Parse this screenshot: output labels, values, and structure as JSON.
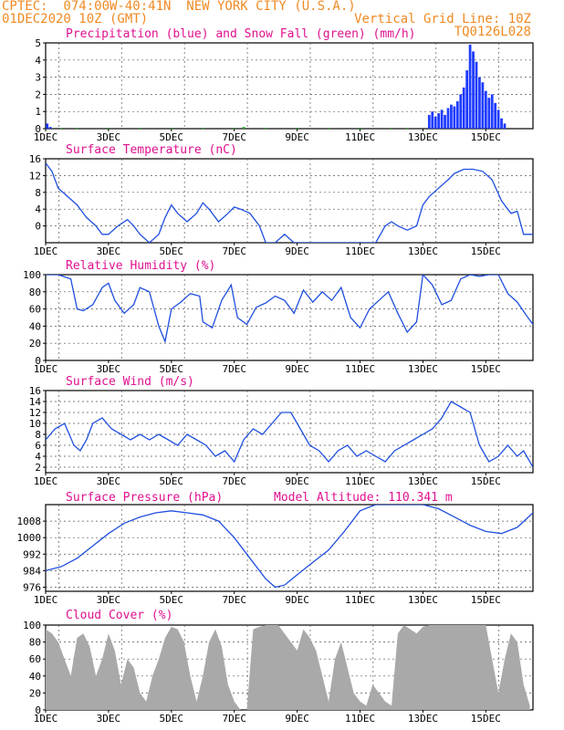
{
  "header": {
    "line1_left": "CPTEC:  074:00W-40:41N  NEW YORK CITY (U.S.A.)",
    "line2_left": "01DEC2020 10Z (GMT)",
    "line2_right": "Vertical Grid Line: 10Z",
    "line3_right": "TQ0126L028"
  },
  "colors": {
    "header": "#f08a24",
    "title": "#e0118f",
    "series": "#1f4fe0",
    "precip": "#1f3bff",
    "snow": "#22aa22",
    "cloud": "#a9a9a9"
  },
  "x_ticks": [
    "1DEC",
    "3DEC",
    "5DEC",
    "7DEC",
    "9DEC",
    "11DEC",
    "13DEC",
    "15DEC"
  ],
  "chart_data": [
    {
      "id": "precip",
      "type": "bar",
      "title": "Precipitation (blue) and Snow Fall (green) (mm/h)",
      "xlim": [
        0,
        15.5
      ],
      "ylim": [
        0,
        5
      ],
      "yticks": [
        0,
        1,
        2,
        3,
        4,
        5
      ],
      "series": [
        {
          "name": "Precipitation",
          "x": [
            0.05,
            0.15,
            12.2,
            12.3,
            12.4,
            12.5,
            12.6,
            12.7,
            12.8,
            12.9,
            13.0,
            13.1,
            13.2,
            13.3,
            13.4,
            13.5,
            13.6,
            13.7,
            13.8,
            13.9,
            14.0,
            14.1,
            14.2,
            14.3,
            14.4,
            14.5,
            14.6
          ],
          "values": [
            0.3,
            0.1,
            0.8,
            1.0,
            0.7,
            0.9,
            1.1,
            0.8,
            1.2,
            1.4,
            1.3,
            1.6,
            2.0,
            2.4,
            3.4,
            4.9,
            4.5,
            3.9,
            3.0,
            2.7,
            2.2,
            1.8,
            2.0,
            1.5,
            1.1,
            0.6,
            0.3
          ]
        },
        {
          "name": "Snow Fall",
          "x": [
            0.5,
            1.0,
            2.0,
            3.0,
            4.0,
            5.0,
            6.0,
            6.3,
            7.0,
            8.0,
            9.0,
            10.0,
            11.0,
            11.5
          ],
          "values": [
            0.05,
            0.05,
            0.05,
            0.05,
            0.05,
            0.05,
            0.05,
            0.1,
            0.05,
            0.05,
            0.05,
            0.05,
            0.05,
            0.05
          ]
        }
      ]
    },
    {
      "id": "temp",
      "type": "line",
      "title": "Surface Temperature (nC)",
      "xlim": [
        0,
        15.5
      ],
      "ylim": [
        -4,
        16
      ],
      "yticks": [
        0,
        4,
        8,
        12,
        16
      ],
      "x": [
        0,
        0.2,
        0.4,
        0.7,
        1.0,
        1.3,
        1.6,
        1.8,
        2.0,
        2.3,
        2.6,
        2.8,
        3.0,
        3.3,
        3.6,
        3.8,
        4.0,
        4.2,
        4.5,
        4.8,
        5.0,
        5.2,
        5.5,
        5.8,
        6.0,
        6.2,
        6.5,
        6.8,
        7.0,
        7.3,
        7.6,
        7.9,
        8.2,
        8.5,
        9.0,
        9.5,
        10.0,
        10.5,
        10.8,
        11.0,
        11.2,
        11.5,
        11.8,
        12.0,
        12.2,
        12.5,
        12.8,
        13.0,
        13.3,
        13.6,
        13.9,
        14.2,
        14.5,
        14.8,
        15.0,
        15.2,
        15.5
      ],
      "values": [
        15,
        13,
        9,
        7,
        5,
        2,
        0,
        -2,
        -2,
        0,
        1.5,
        0,
        -2,
        -4,
        -2,
        2,
        5,
        3,
        1,
        3,
        5.5,
        4,
        1,
        3,
        4.5,
        4,
        3,
        0,
        -4,
        -4,
        -2,
        -4,
        -4,
        -4,
        -4,
        -4,
        -4,
        -4,
        0,
        1,
        0,
        -1,
        0,
        5,
        7,
        9,
        11,
        12.5,
        13.5,
        13.5,
        13,
        11,
        6,
        3,
        3.5,
        -2,
        -2
      ]
    },
    {
      "id": "rh",
      "type": "line",
      "title": "Relative Humidity (%)",
      "xlim": [
        0,
        15.5
      ],
      "ylim": [
        0,
        100
      ],
      "yticks": [
        0,
        20,
        40,
        60,
        80,
        100
      ],
      "x": [
        0,
        0.4,
        0.8,
        1.0,
        1.2,
        1.5,
        1.8,
        2.0,
        2.2,
        2.5,
        2.8,
        3.0,
        3.3,
        3.6,
        3.8,
        4.0,
        4.3,
        4.6,
        4.9,
        5.0,
        5.3,
        5.6,
        5.9,
        6.1,
        6.4,
        6.7,
        7.0,
        7.3,
        7.6,
        7.9,
        8.2,
        8.5,
        8.8,
        9.1,
        9.4,
        9.7,
        10.0,
        10.3,
        10.6,
        10.9,
        11.2,
        11.5,
        11.8,
        12.0,
        12.3,
        12.6,
        12.9,
        13.2,
        13.5,
        13.8,
        14.1,
        14.4,
        14.7,
        15.0,
        15.3,
        15.5
      ],
      "values": [
        100,
        100,
        95,
        60,
        58,
        65,
        85,
        90,
        70,
        55,
        65,
        85,
        80,
        40,
        22,
        60,
        68,
        78,
        75,
        45,
        38,
        70,
        88,
        50,
        42,
        62,
        67,
        75,
        70,
        55,
        82,
        68,
        80,
        70,
        85,
        50,
        38,
        60,
        70,
        80,
        55,
        33,
        45,
        100,
        88,
        65,
        70,
        95,
        100,
        98,
        100,
        100,
        78,
        68,
        52,
        42
      ]
    },
    {
      "id": "wind",
      "type": "line",
      "title": "Surface Wind (m/s)",
      "xlim": [
        0,
        15.5
      ],
      "ylim": [
        1,
        16
      ],
      "yticks": [
        2,
        4,
        6,
        8,
        10,
        12,
        14,
        16
      ],
      "x": [
        0,
        0.3,
        0.6,
        0.9,
        1.1,
        1.3,
        1.5,
        1.8,
        2.1,
        2.4,
        2.7,
        3.0,
        3.3,
        3.6,
        3.9,
        4.2,
        4.5,
        4.8,
        5.1,
        5.4,
        5.7,
        6.0,
        6.3,
        6.6,
        6.9,
        7.2,
        7.5,
        7.8,
        8.1,
        8.4,
        8.7,
        9.0,
        9.3,
        9.6,
        9.9,
        10.2,
        10.5,
        10.8,
        11.1,
        11.4,
        11.7,
        12.0,
        12.3,
        12.6,
        12.9,
        13.2,
        13.5,
        13.8,
        14.1,
        14.4,
        14.7,
        15.0,
        15.2,
        15.5
      ],
      "values": [
        7,
        9,
        10,
        6,
        5,
        7,
        10,
        11,
        9,
        8,
        7,
        8,
        7,
        8,
        7,
        6,
        8,
        7,
        6,
        4,
        5,
        3,
        7,
        9,
        8,
        10,
        12,
        12,
        9,
        6,
        5,
        3,
        5,
        6,
        4,
        5,
        4,
        3,
        5,
        6,
        7,
        8,
        9,
        11,
        14,
        13,
        12,
        6,
        3,
        4,
        6,
        4,
        5,
        2
      ]
    },
    {
      "id": "pres",
      "type": "line",
      "title": "Surface Pressure (hPa)",
      "annotation": "Model Altitude: 110.341 m",
      "xlim": [
        0,
        15.5
      ],
      "ylim": [
        974,
        1016
      ],
      "yticks": [
        976,
        984,
        992,
        1000,
        1008
      ],
      "x": [
        0,
        0.5,
        1.0,
        1.5,
        2.0,
        2.5,
        3.0,
        3.5,
        4.0,
        4.5,
        5.0,
        5.5,
        6.0,
        6.5,
        7.0,
        7.3,
        7.6,
        8.0,
        8.5,
        9.0,
        9.5,
        10.0,
        10.5,
        11.0,
        11.5,
        12.0,
        12.5,
        13.0,
        13.5,
        14.0,
        14.5,
        15.0,
        15.5
      ],
      "values": [
        984,
        986,
        990,
        996,
        1002,
        1007,
        1010,
        1012,
        1013,
        1012,
        1011,
        1008,
        1000,
        990,
        980,
        976,
        977,
        982,
        988,
        994,
        1003,
        1013,
        1016,
        1016,
        1016,
        1016,
        1014,
        1010,
        1006,
        1003,
        1002,
        1005,
        1012
      ]
    },
    {
      "id": "cloud",
      "type": "area",
      "title": "Cloud Cover (%)",
      "xlim": [
        0,
        15.5
      ],
      "ylim": [
        0,
        100
      ],
      "yticks": [
        0,
        20,
        40,
        60,
        80,
        100
      ],
      "x": [
        0,
        0.2,
        0.4,
        0.6,
        0.8,
        1.0,
        1.2,
        1.4,
        1.6,
        1.8,
        2.0,
        2.2,
        2.4,
        2.6,
        2.8,
        3.0,
        3.2,
        3.4,
        3.6,
        3.8,
        4.0,
        4.2,
        4.4,
        4.6,
        4.8,
        5.0,
        5.2,
        5.4,
        5.6,
        5.8,
        6.0,
        6.2,
        6.4,
        6.6,
        6.8,
        7.0,
        7.2,
        7.4,
        7.6,
        7.8,
        8.0,
        8.2,
        8.4,
        8.6,
        8.8,
        9.0,
        9.2,
        9.4,
        9.6,
        9.8,
        10.0,
        10.2,
        10.4,
        10.6,
        10.8,
        11.0,
        11.2,
        11.4,
        11.6,
        11.8,
        12.0,
        12.2,
        12.4,
        12.6,
        12.8,
        13.0,
        13.2,
        13.4,
        13.6,
        13.8,
        14.0,
        14.2,
        14.4,
        14.6,
        14.8,
        15.0,
        15.2,
        15.4
      ],
      "values": [
        95,
        90,
        80,
        60,
        40,
        85,
        90,
        75,
        40,
        60,
        90,
        70,
        30,
        60,
        50,
        20,
        10,
        40,
        60,
        85,
        98,
        95,
        80,
        40,
        10,
        40,
        80,
        95,
        75,
        30,
        10,
        0,
        0,
        95,
        98,
        100,
        100,
        100,
        90,
        80,
        70,
        95,
        85,
        70,
        40,
        10,
        60,
        80,
        50,
        20,
        10,
        5,
        30,
        20,
        10,
        5,
        90,
        100,
        95,
        90,
        98,
        100,
        100,
        100,
        100,
        100,
        100,
        100,
        100,
        100,
        100,
        60,
        20,
        60,
        90,
        80,
        30,
        5
      ]
    }
  ]
}
